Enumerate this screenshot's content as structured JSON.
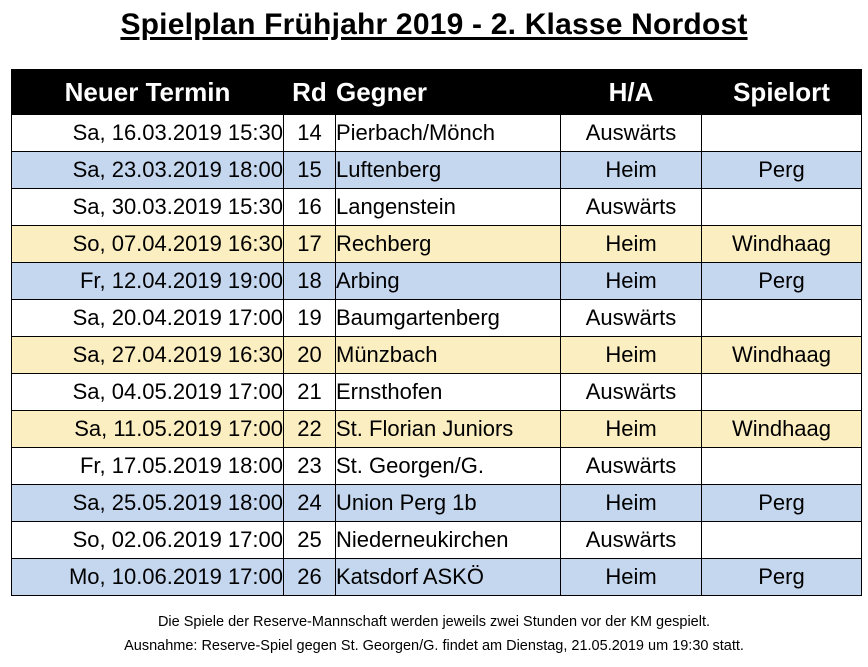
{
  "title": "Spielplan Frühjahr 2019 - 2. Klasse Nordost",
  "colors": {
    "header_bg": "#000000",
    "header_text": "#ffffff",
    "row_white": "#ffffff",
    "row_blue": "#c5d7ef",
    "row_yellow": "#fbeec0"
  },
  "table": {
    "headers": {
      "date": "Neuer Termin",
      "round": "Rd",
      "opponent": "Gegner",
      "home_away": "H/A",
      "venue": "Spielort"
    },
    "rows": [
      {
        "date": "Sa, 16.03.2019 15:30",
        "round": "14",
        "opponent": "Pierbach/Mönch",
        "home_away": "Auswärts",
        "venue": "",
        "color": "#ffffff"
      },
      {
        "date": "Sa, 23.03.2019 18:00",
        "round": "15",
        "opponent": "Luftenberg",
        "home_away": "Heim",
        "venue": "Perg",
        "color": "#c5d7ef"
      },
      {
        "date": "Sa, 30.03.2019 15:30",
        "round": "16",
        "opponent": "Langenstein",
        "home_away": "Auswärts",
        "venue": "",
        "color": "#ffffff"
      },
      {
        "date": "So, 07.04.2019 16:30",
        "round": "17",
        "opponent": "Rechberg",
        "home_away": "Heim",
        "venue": "Windhaag",
        "color": "#fbeec0"
      },
      {
        "date": "Fr, 12.04.2019 19:00",
        "round": "18",
        "opponent": "Arbing",
        "home_away": "Heim",
        "venue": "Perg",
        "color": "#c5d7ef"
      },
      {
        "date": "Sa, 20.04.2019 17:00",
        "round": "19",
        "opponent": "Baumgartenberg",
        "home_away": "Auswärts",
        "venue": "",
        "color": "#ffffff"
      },
      {
        "date": "Sa, 27.04.2019 16:30",
        "round": "20",
        "opponent": "Münzbach",
        "home_away": "Heim",
        "venue": "Windhaag",
        "color": "#fbeec0"
      },
      {
        "date": "Sa, 04.05.2019 17:00",
        "round": "21",
        "opponent": "Ernsthofen",
        "home_away": "Auswärts",
        "venue": "",
        "color": "#ffffff"
      },
      {
        "date": "Sa, 11.05.2019 17:00",
        "round": "22",
        "opponent": "St. Florian Juniors",
        "home_away": "Heim",
        "venue": "Windhaag",
        "color": "#fbeec0"
      },
      {
        "date": "Fr, 17.05.2019 18:00",
        "round": "23",
        "opponent": "St. Georgen/G.",
        "home_away": "Auswärts",
        "venue": "",
        "color": "#ffffff"
      },
      {
        "date": "Sa, 25.05.2019 18:00",
        "round": "24",
        "opponent": "Union Perg 1b",
        "home_away": "Heim",
        "venue": "Perg",
        "color": "#c5d7ef"
      },
      {
        "date": "So, 02.06.2019 17:00",
        "round": "25",
        "opponent": "Niederneukirchen",
        "home_away": "Auswärts",
        "venue": "",
        "color": "#ffffff"
      },
      {
        "date": "Mo, 10.06.2019 17:00",
        "round": "26",
        "opponent": "Katsdorf ASKÖ",
        "home_away": "Heim",
        "venue": "Perg",
        "color": "#c5d7ef"
      }
    ]
  },
  "notes": {
    "line1": "Die Spiele der Reserve-Mannschaft werden jeweils zwei Stunden vor der KM gespielt.",
    "line2": "Ausnahme: Reserve-Spiel gegen St. Georgen/G. findet am Dienstag, 21.05.2019 um 19:30 statt."
  }
}
